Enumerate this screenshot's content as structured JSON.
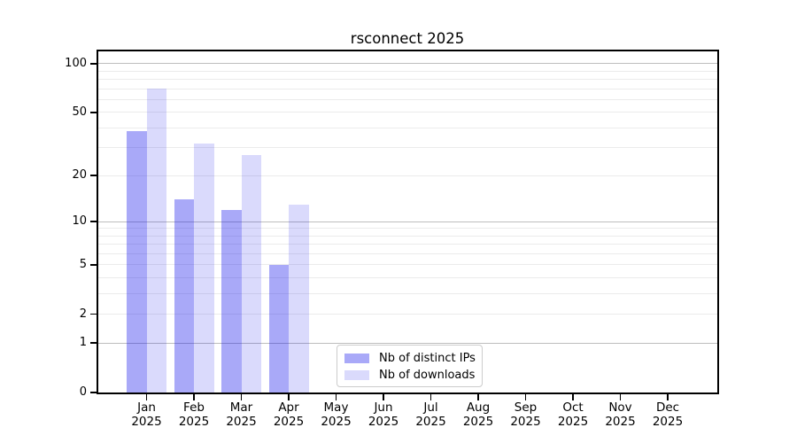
{
  "title": "rsconnect 2025",
  "chart_data": {
    "type": "bar",
    "title": "rsconnect 2025",
    "categories": [
      "Jan 2025",
      "Feb 2025",
      "Mar 2025",
      "Apr 2025",
      "May 2025",
      "Jun 2025",
      "Jul 2025",
      "Aug 2025",
      "Sep 2025",
      "Oct 2025",
      "Nov 2025",
      "Dec 2025"
    ],
    "series": [
      {
        "name": "Nb of distinct IPs",
        "color": "rgba(10,10,235,0.35)",
        "values": [
          38,
          14,
          12,
          5,
          null,
          null,
          null,
          null,
          null,
          null,
          null,
          null
        ]
      },
      {
        "name": "Nb of downloads",
        "color": "rgba(10,10,235,0.15)",
        "values": [
          70,
          32,
          27,
          13,
          null,
          null,
          null,
          null,
          null,
          null,
          null,
          null
        ]
      }
    ],
    "xlabel": "",
    "ylabel": "",
    "y_axis": {
      "scale": "log1p",
      "tick_values": [
        0,
        1,
        2,
        5,
        10,
        20,
        50,
        100
      ],
      "max": 119,
      "minor_gridlines": [
        2,
        3,
        4,
        5,
        6,
        7,
        8,
        9,
        20,
        30,
        40,
        50,
        60,
        70,
        80,
        90
      ],
      "major_gridlines": [
        1,
        10,
        100
      ]
    },
    "legend": {
      "position": "lower center-right",
      "entries": [
        "Nb of distinct IPs",
        "Nb of downloads"
      ]
    },
    "grid": true,
    "colors": {
      "minor_grid": "#ebebeb",
      "major_grid": "#bdbdbd",
      "axis": "#000000",
      "text": "#000000",
      "legend_border": "#cccccc",
      "background": "#ffffff"
    }
  }
}
